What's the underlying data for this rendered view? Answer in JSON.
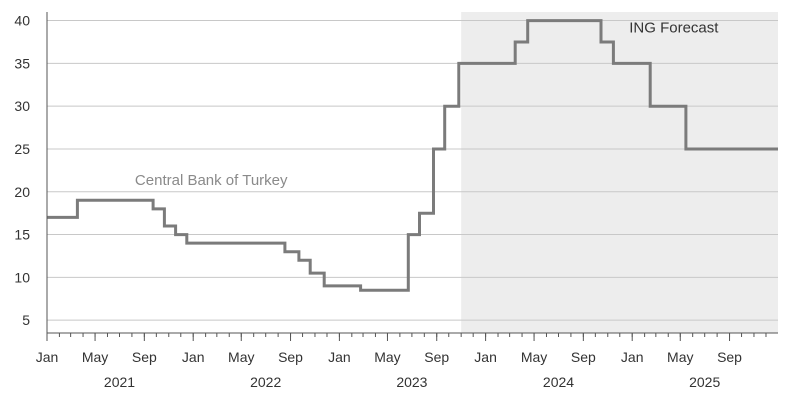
{
  "chart_data": {
    "type": "line",
    "title": "",
    "xlabel": "",
    "ylabel": "",
    "step": "post",
    "x_range": [
      "2021-01-01",
      "2025-12-31"
    ],
    "ylim": [
      3.5,
      41
    ],
    "yticks": [
      5,
      10,
      15,
      20,
      25,
      30,
      35,
      40
    ],
    "grid": "horizontal",
    "month_labels": [
      {
        "date": "2021-01-01",
        "label": "Jan"
      },
      {
        "date": "2021-05-01",
        "label": "May"
      },
      {
        "date": "2021-09-01",
        "label": "Sep"
      },
      {
        "date": "2022-01-01",
        "label": "Jan"
      },
      {
        "date": "2022-05-01",
        "label": "May"
      },
      {
        "date": "2022-09-01",
        "label": "Sep"
      },
      {
        "date": "2023-01-01",
        "label": "Jan"
      },
      {
        "date": "2023-05-01",
        "label": "May"
      },
      {
        "date": "2023-09-01",
        "label": "Sep"
      },
      {
        "date": "2024-01-01",
        "label": "Jan"
      },
      {
        "date": "2024-05-01",
        "label": "May"
      },
      {
        "date": "2024-09-01",
        "label": "Sep"
      },
      {
        "date": "2025-01-01",
        "label": "Jan"
      },
      {
        "date": "2025-05-01",
        "label": "May"
      },
      {
        "date": "2025-09-01",
        "label": "Sep"
      }
    ],
    "year_labels": [
      {
        "date": "2021-07-01",
        "label": "2021"
      },
      {
        "date": "2022-07-01",
        "label": "2022"
      },
      {
        "date": "2023-07-01",
        "label": "2023"
      },
      {
        "date": "2024-07-01",
        "label": "2024"
      },
      {
        "date": "2025-07-01",
        "label": "2025"
      }
    ],
    "forecast_region": {
      "start": "2023-11-01",
      "end": "2025-12-31",
      "label": "ING Forecast",
      "color": "#ededed"
    },
    "annotations": [
      {
        "text": "Central Bank of Turkey",
        "date": "2022-02-15",
        "y": 20.8,
        "color": "#8a8a8a"
      },
      {
        "text": "ING Forecast",
        "date": "2025-04-15",
        "y": 38.6,
        "color": "#333333"
      }
    ],
    "series_color": "#7b7b7b",
    "points": [
      {
        "date": "2021-01-01",
        "value": 17
      },
      {
        "date": "2021-03-18",
        "value": 19
      },
      {
        "date": "2021-09-23",
        "value": 18
      },
      {
        "date": "2021-10-21",
        "value": 16
      },
      {
        "date": "2021-11-18",
        "value": 15
      },
      {
        "date": "2021-12-16",
        "value": 14
      },
      {
        "date": "2022-08-18",
        "value": 13
      },
      {
        "date": "2022-09-22",
        "value": 12
      },
      {
        "date": "2022-10-20",
        "value": 10.5
      },
      {
        "date": "2022-11-24",
        "value": 9
      },
      {
        "date": "2023-02-23",
        "value": 8.5
      },
      {
        "date": "2023-06-22",
        "value": 15
      },
      {
        "date": "2023-07-20",
        "value": 17.5
      },
      {
        "date": "2023-08-24",
        "value": 25
      },
      {
        "date": "2023-09-21",
        "value": 30
      },
      {
        "date": "2023-10-26",
        "value": 35
      },
      {
        "date": "2024-03-15",
        "value": 37.5
      },
      {
        "date": "2024-04-15",
        "value": 40
      },
      {
        "date": "2024-10-15",
        "value": 37.5
      },
      {
        "date": "2024-11-15",
        "value": 35
      },
      {
        "date": "2025-02-15",
        "value": 30
      },
      {
        "date": "2025-05-15",
        "value": 25
      },
      {
        "date": "2025-12-31",
        "value": 25
      }
    ]
  }
}
